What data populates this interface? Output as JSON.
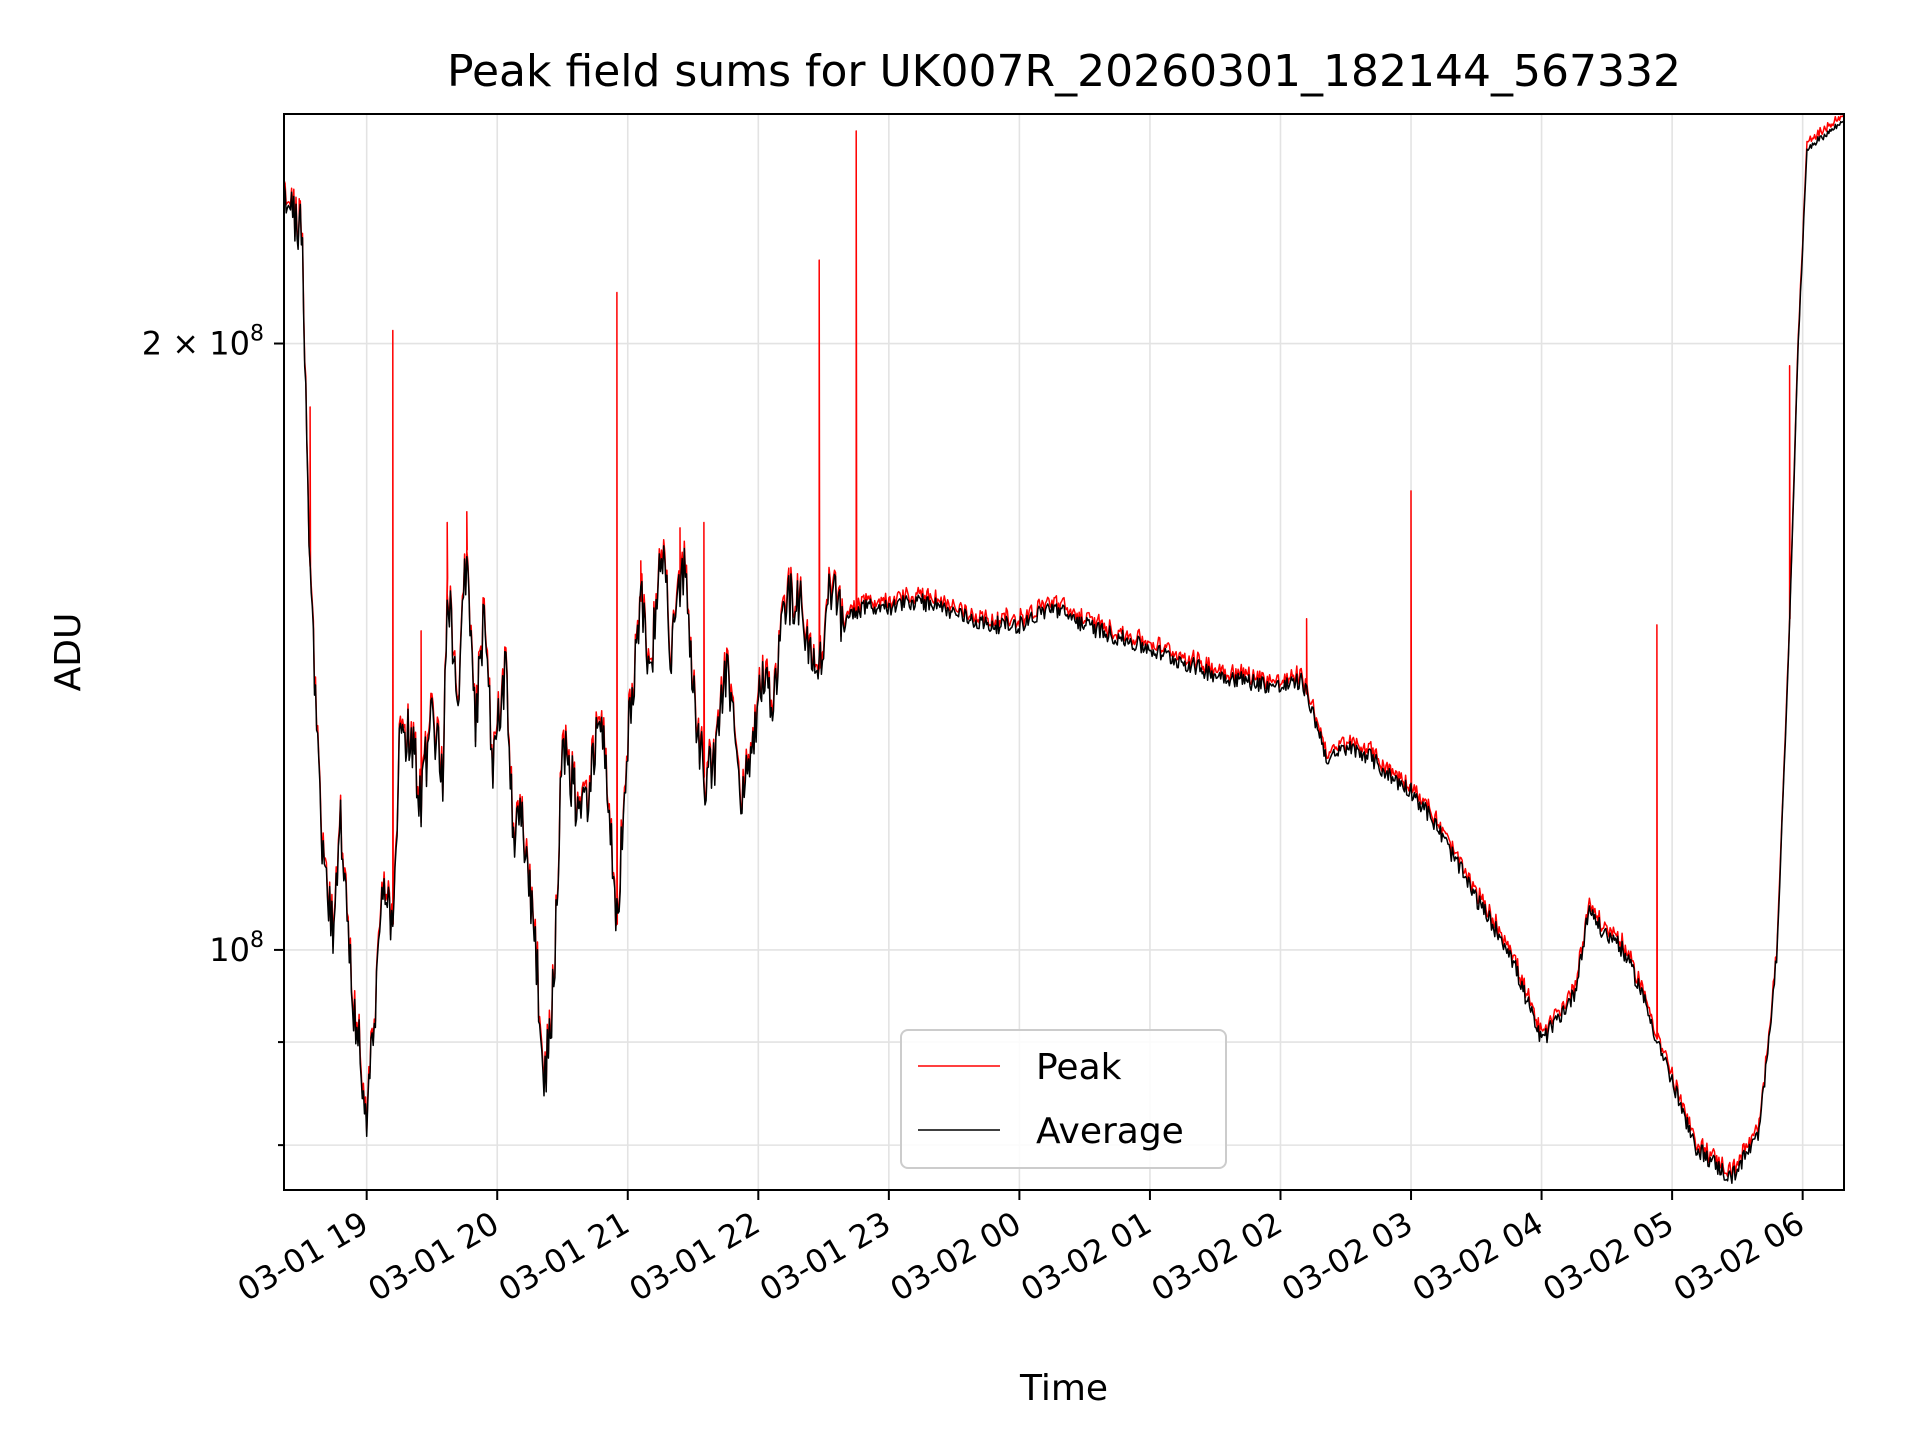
{
  "chart_data": {
    "type": "line",
    "title": "Peak field sums for UK007R_20260301_182144_567332",
    "xlabel": "Time",
    "ylabel": "ADU",
    "y_scale": "log",
    "grid": true,
    "legend_position": "lower-center",
    "x_tick_labels": [
      "03-01 19",
      "03-01 20",
      "03-01 21",
      "03-01 22",
      "03-01 23",
      "03-02 00",
      "03-02 01",
      "03-02 02",
      "03-02 03",
      "03-02 04",
      "03-02 05",
      "03-02 06"
    ],
    "x_ticks": [
      "2026-03-01 19:00",
      "2026-03-01 20:00",
      "2026-03-01 21:00",
      "2026-03-01 22:00",
      "2026-03-01 23:00",
      "2026-03-02 00:00",
      "2026-03-02 01:00",
      "2026-03-02 02:00",
      "2026-03-02 03:00",
      "2026-03-02 04:00",
      "2026-03-02 05:00",
      "2026-03-02 06:00"
    ],
    "xlim": [
      "2026-03-01 18:22",
      "2026-03-02 06:19"
    ],
    "ylim": [
      76000000,
      260000000
    ],
    "y_ticks_major": [
      {
        "value": 100000000,
        "label_base": "10",
        "label_exp": "8"
      },
      {
        "value": 200000000,
        "label_base": "2 × 10",
        "label_exp": "8"
      }
    ],
    "y_ticks_minor": [
      80000000,
      90000000
    ],
    "average_keyframes": [
      [
        "2026-03-01 18:22",
        232000000
      ],
      [
        "2026-03-01 18:30",
        230000000
      ],
      [
        "2026-03-01 18:34",
        155000000
      ],
      [
        "2026-03-01 18:40",
        110000000
      ],
      [
        "2026-03-01 18:45",
        101000000
      ],
      [
        "2026-03-01 18:48",
        117000000
      ],
      [
        "2026-03-01 18:53",
        96000000
      ],
      [
        "2026-03-01 19:00",
        83000000
      ],
      [
        "2026-03-01 19:03",
        91000000
      ],
      [
        "2026-03-01 19:08",
        108000000
      ],
      [
        "2026-03-01 19:12",
        103000000
      ],
      [
        "2026-03-01 19:15",
        125000000
      ],
      [
        "2026-03-01 19:20",
        128000000
      ],
      [
        "2026-03-01 19:25",
        119000000
      ],
      [
        "2026-03-01 19:30",
        130000000
      ],
      [
        "2026-03-01 19:35",
        122000000
      ],
      [
        "2026-03-01 19:37",
        153000000
      ],
      [
        "2026-03-01 19:42",
        132000000
      ],
      [
        "2026-03-01 19:46",
        158000000
      ],
      [
        "2026-03-01 19:50",
        128000000
      ],
      [
        "2026-03-01 19:54",
        148000000
      ],
      [
        "2026-03-01 19:58",
        124000000
      ],
      [
        "2026-03-01 20:04",
        138000000
      ],
      [
        "2026-03-01 20:07",
        115000000
      ],
      [
        "2026-03-01 20:12",
        115000000
      ],
      [
        "2026-03-01 20:17",
        102000000
      ],
      [
        "2026-03-01 20:22",
        86000000
      ],
      [
        "2026-03-01 20:26",
        96000000
      ],
      [
        "2026-03-01 20:30",
        126000000
      ],
      [
        "2026-03-01 20:36",
        119000000
      ],
      [
        "2026-03-01 20:42",
        117000000
      ],
      [
        "2026-03-01 20:46",
        131000000
      ],
      [
        "2026-03-01 20:50",
        124000000
      ],
      [
        "2026-03-01 20:55",
        103000000
      ],
      [
        "2026-03-01 21:00",
        127000000
      ],
      [
        "2026-03-01 21:06",
        149000000
      ],
      [
        "2026-03-01 21:10",
        136000000
      ],
      [
        "2026-03-01 21:16",
        158000000
      ],
      [
        "2026-03-01 21:20",
        140000000
      ],
      [
        "2026-03-01 21:26",
        155000000
      ],
      [
        "2026-03-01 21:30",
        134000000
      ],
      [
        "2026-03-01 21:35",
        122000000
      ],
      [
        "2026-03-01 21:40",
        124000000
      ],
      [
        "2026-03-01 21:46",
        140000000
      ],
      [
        "2026-03-01 21:52",
        118000000
      ],
      [
        "2026-03-01 21:58",
        128000000
      ],
      [
        "2026-03-01 22:02",
        136000000
      ],
      [
        "2026-03-01 22:06",
        131000000
      ],
      [
        "2026-03-01 22:13",
        150000000
      ],
      [
        "2026-03-01 22:19",
        150000000
      ],
      [
        "2026-03-01 22:23",
        140000000
      ],
      [
        "2026-03-01 22:28",
        138000000
      ],
      [
        "2026-03-01 22:33",
        150000000
      ],
      [
        "2026-03-01 22:40",
        146000000
      ],
      [
        "2026-03-01 22:50",
        148000000
      ],
      [
        "2026-03-01 23:00",
        148000000
      ],
      [
        "2026-03-01 23:15",
        149000000
      ],
      [
        "2026-03-01 23:30",
        147000000
      ],
      [
        "2026-03-01 23:45",
        145000000
      ],
      [
        "2026-03-02 00:00",
        145000000
      ],
      [
        "2026-03-02 00:15",
        148000000
      ],
      [
        "2026-03-02 00:30",
        145000000
      ],
      [
        "2026-03-02 00:45",
        143000000
      ],
      [
        "2026-03-02 01:00",
        141000000
      ],
      [
        "2026-03-02 01:15",
        139000000
      ],
      [
        "2026-03-02 01:30",
        137000000
      ],
      [
        "2026-03-02 01:45",
        136000000
      ],
      [
        "2026-03-02 02:00",
        135000000
      ],
      [
        "2026-03-02 02:10",
        136000000
      ],
      [
        "2026-03-02 02:15",
        131000000
      ],
      [
        "2026-03-02 02:22",
        124000000
      ],
      [
        "2026-03-02 02:30",
        126000000
      ],
      [
        "2026-03-02 02:40",
        125000000
      ],
      [
        "2026-03-02 02:50",
        122000000
      ],
      [
        "2026-03-02 03:00",
        120000000
      ],
      [
        "2026-03-02 03:10",
        116000000
      ],
      [
        "2026-03-02 03:20",
        111000000
      ],
      [
        "2026-03-02 03:30",
        106000000
      ],
      [
        "2026-03-02 03:45",
        100000000
      ],
      [
        "2026-03-02 04:00",
        90000000
      ],
      [
        "2026-03-02 04:15",
        95000000
      ],
      [
        "2026-03-02 04:22",
        105000000
      ],
      [
        "2026-03-02 04:28",
        102000000
      ],
      [
        "2026-03-02 04:35",
        101000000
      ],
      [
        "2026-03-02 04:45",
        96000000
      ],
      [
        "2026-03-02 04:52",
        91000000
      ],
      [
        "2026-03-02 05:00",
        86000000
      ],
      [
        "2026-03-02 05:10",
        80000000
      ],
      [
        "2026-03-02 05:27",
        77000000
      ],
      [
        "2026-03-02 05:40",
        81000000
      ],
      [
        "2026-03-02 05:48",
        99000000
      ],
      [
        "2026-03-02 05:53",
        135000000
      ],
      [
        "2026-03-02 05:58",
        200000000
      ],
      [
        "2026-03-02 06:02",
        250000000
      ],
      [
        "2026-03-02 06:19",
        258000000
      ]
    ],
    "peak_spikes": [
      [
        "2026-03-01 18:29",
        236000000
      ],
      [
        "2026-03-01 18:34",
        186000000
      ],
      [
        "2026-03-01 19:12",
        203000000
      ],
      [
        "2026-03-01 19:25",
        144000000
      ],
      [
        "2026-03-01 19:37",
        163000000
      ],
      [
        "2026-03-01 19:46",
        165000000
      ],
      [
        "2026-03-01 20:55",
        212000000
      ],
      [
        "2026-03-01 21:06",
        156000000
      ],
      [
        "2026-03-01 21:24",
        162000000
      ],
      [
        "2026-03-01 21:35",
        163000000
      ],
      [
        "2026-03-01 22:28",
        220000000
      ],
      [
        "2026-03-01 22:45",
        255000000
      ],
      [
        "2026-03-02 02:12",
        146000000
      ],
      [
        "2026-03-02 03:00",
        169000000
      ],
      [
        "2026-03-02 04:53",
        145000000
      ],
      [
        "2026-03-02 05:54",
        195000000
      ]
    ],
    "series": [
      {
        "name": "Peak",
        "color": "#ff0000"
      },
      {
        "name": "Average",
        "color": "#000000"
      }
    ]
  }
}
